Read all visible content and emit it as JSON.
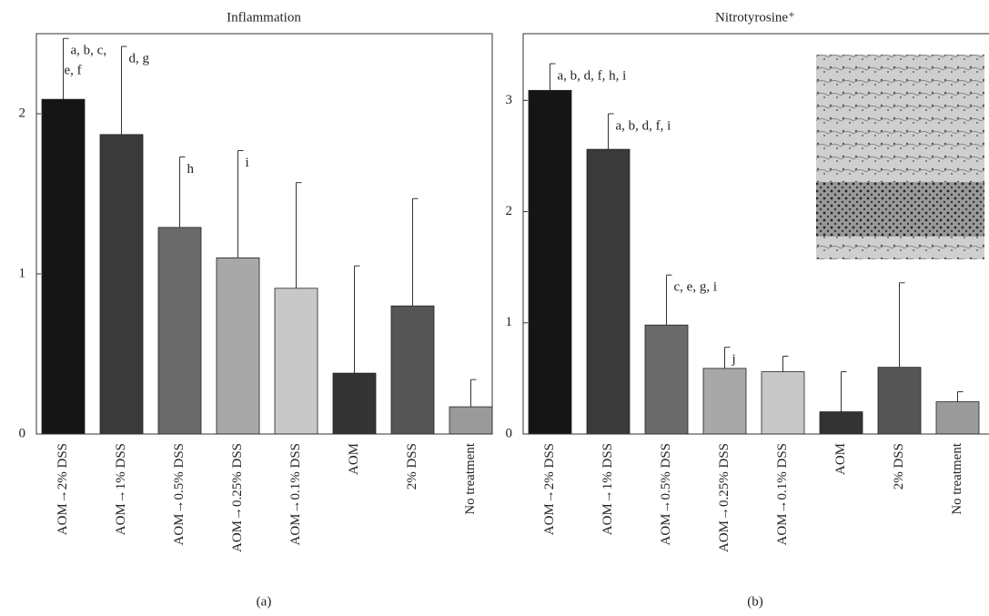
{
  "chart_data": [
    {
      "type": "bar",
      "title": "Inflammation",
      "panel_label": "(a)",
      "categories": [
        "AOM→2% DSS",
        "AOM→1% DSS",
        "AOM→0.5% DSS",
        "AOM→0.25% DSS",
        "AOM→0.1% DSS",
        "AOM",
        "2% DSS",
        "No treatment"
      ],
      "values": [
        2.09,
        1.87,
        1.29,
        1.1,
        0.91,
        0.38,
        0.8,
        0.17
      ],
      "errors": [
        0.38,
        0.55,
        0.44,
        0.67,
        0.66,
        0.67,
        0.67,
        0.17
      ],
      "colors": [
        "#151515",
        "#3a3a3a",
        "#6a6a6a",
        "#a8a8a8",
        "#c8c8c8",
        "#333333",
        "#555555",
        "#9a9a9a"
      ],
      "significance": [
        [
          "a, b, c,",
          "e, f"
        ],
        [
          "d, g"
        ],
        [
          "h"
        ],
        [
          "i"
        ],
        [],
        [],
        [],
        []
      ],
      "ylim": [
        0,
        2.5
      ],
      "yticks": [
        0,
        1,
        2
      ]
    },
    {
      "type": "bar",
      "title": "Nitrotyrosine⁺",
      "panel_label": "(b)",
      "categories": [
        "AOM→2% DSS",
        "AOM→1% DSS",
        "AOM→0.5% DSS",
        "AOM→0.25% DSS",
        "AOM→0.1% DSS",
        "AOM",
        "2% DSS",
        "No treatment"
      ],
      "values": [
        3.09,
        2.56,
        0.98,
        0.59,
        0.56,
        0.2,
        0.6,
        0.29
      ],
      "errors": [
        0.24,
        0.32,
        0.45,
        0.19,
        0.14,
        0.36,
        0.76,
        0.09
      ],
      "colors": [
        "#151515",
        "#3a3a3a",
        "#6a6a6a",
        "#a8a8a8",
        "#c8c8c8",
        "#333333",
        "#555555",
        "#9a9a9a"
      ],
      "significance": [
        [
          "a, b, d, f, h, i"
        ],
        [
          "a, b, d, f, i"
        ],
        [
          "c, e, g, i"
        ],
        [
          "j"
        ],
        [],
        [],
        [],
        []
      ],
      "ylim": [
        0,
        3.6
      ],
      "yticks": [
        0,
        1,
        2,
        3
      ]
    }
  ]
}
